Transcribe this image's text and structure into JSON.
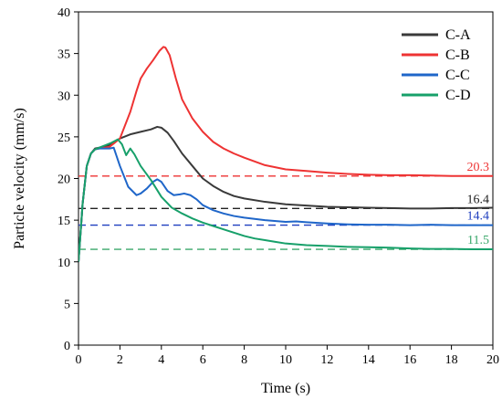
{
  "chart_data": {
    "type": "line",
    "xlabel": "Time (s)",
    "ylabel": "Particle velocity (mm/s)",
    "xlim": [
      0,
      20
    ],
    "ylim": [
      0,
      40
    ],
    "xticks": [
      0,
      2,
      4,
      6,
      8,
      10,
      12,
      14,
      16,
      18,
      20
    ],
    "yticks": [
      0,
      5,
      10,
      15,
      20,
      25,
      30,
      35,
      40
    ],
    "grid": false,
    "legend_position": "top-right",
    "series": [
      {
        "name": "C-A",
        "color": "#3a3a3a",
        "x": [
          0,
          0.2,
          0.4,
          0.6,
          0.8,
          1.0,
          1.5,
          2.0,
          2.5,
          3.0,
          3.5,
          3.8,
          4.0,
          4.3,
          4.6,
          5.0,
          5.5,
          6.0,
          6.5,
          7.0,
          7.5,
          8.0,
          9.0,
          10.0,
          11.0,
          12.0,
          13.0,
          14.0,
          15.0,
          16.0,
          17.0,
          18.0,
          19.0,
          20.0
        ],
        "y": [
          10.0,
          17.0,
          21.5,
          23.0,
          23.6,
          23.7,
          24.0,
          24.8,
          25.3,
          25.6,
          25.9,
          26.2,
          26.1,
          25.5,
          24.5,
          23.0,
          21.5,
          20.0,
          19.1,
          18.4,
          17.9,
          17.6,
          17.2,
          16.9,
          16.75,
          16.6,
          16.55,
          16.5,
          16.45,
          16.4,
          16.4,
          16.45,
          16.45,
          16.5
        ]
      },
      {
        "name": "C-B",
        "color": "#ee3333",
        "x": [
          0,
          0.2,
          0.4,
          0.6,
          0.8,
          1.0,
          1.5,
          2.0,
          2.5,
          2.8,
          3.0,
          3.3,
          3.6,
          3.9,
          4.1,
          4.2,
          4.4,
          4.7,
          5.0,
          5.5,
          6.0,
          6.5,
          7.0,
          7.5,
          8.0,
          9.0,
          10.0,
          11.0,
          12.0,
          13.0,
          14.0,
          15.0,
          16.0,
          17.0,
          18.0,
          19.0,
          20.0
        ],
        "y": [
          10.0,
          17.0,
          21.5,
          23.0,
          23.5,
          23.6,
          23.8,
          24.8,
          28.0,
          30.5,
          32.0,
          33.2,
          34.2,
          35.3,
          35.8,
          35.7,
          34.8,
          32.0,
          29.5,
          27.2,
          25.6,
          24.4,
          23.6,
          23.0,
          22.5,
          21.6,
          21.1,
          20.9,
          20.7,
          20.55,
          20.45,
          20.4,
          20.4,
          20.35,
          20.3,
          20.3,
          20.3
        ]
      },
      {
        "name": "C-C",
        "color": "#1f66c9",
        "x": [
          0,
          0.2,
          0.4,
          0.6,
          0.8,
          1.0,
          1.5,
          1.7,
          2.0,
          2.4,
          2.8,
          3.0,
          3.3,
          3.6,
          3.8,
          4.0,
          4.3,
          4.6,
          4.9,
          5.1,
          5.4,
          5.7,
          6.0,
          6.5,
          7.0,
          7.5,
          8.0,
          9.0,
          10.0,
          10.5,
          11.0,
          12.0,
          13.0,
          14.0,
          15.0,
          16.0,
          17.0,
          18.0,
          19.0,
          20.0
        ],
        "y": [
          10.0,
          17.0,
          21.5,
          23.0,
          23.5,
          23.6,
          23.6,
          23.7,
          21.5,
          19.0,
          18.0,
          18.2,
          18.8,
          19.6,
          19.9,
          19.6,
          18.5,
          18.0,
          18.1,
          18.2,
          18.0,
          17.5,
          16.8,
          16.2,
          15.8,
          15.5,
          15.3,
          15.0,
          14.8,
          14.85,
          14.75,
          14.6,
          14.5,
          14.45,
          14.45,
          14.4,
          14.45,
          14.4,
          14.4,
          14.4
        ]
      },
      {
        "name": "C-D",
        "color": "#17a06a",
        "x": [
          0,
          0.2,
          0.4,
          0.6,
          0.8,
          1.0,
          1.3,
          1.6,
          1.9,
          2.1,
          2.3,
          2.5,
          2.7,
          3.0,
          3.5,
          4.0,
          4.5,
          5.0,
          5.5,
          6.0,
          6.5,
          7.0,
          7.5,
          8.0,
          8.5,
          9.0,
          9.5,
          10.0,
          11.0,
          12.0,
          13.0,
          14.0,
          15.0,
          16.0,
          17.0,
          18.0,
          19.0,
          20.0
        ],
        "y": [
          10.0,
          17.0,
          21.5,
          23.0,
          23.5,
          23.7,
          24.0,
          24.3,
          24.7,
          24.1,
          22.8,
          23.6,
          22.9,
          21.5,
          19.8,
          17.8,
          16.5,
          15.8,
          15.2,
          14.7,
          14.3,
          13.9,
          13.5,
          13.1,
          12.8,
          12.6,
          12.4,
          12.2,
          12.0,
          11.9,
          11.8,
          11.75,
          11.7,
          11.6,
          11.55,
          11.55,
          11.5,
          11.5
        ]
      }
    ],
    "reference_lines": [
      {
        "value": 20.3,
        "label": "20.3",
        "color": "#ee3333"
      },
      {
        "value": 16.4,
        "label": "16.4",
        "color": "#222222"
      },
      {
        "value": 14.4,
        "label": "14.4",
        "color": "#1f3fbf"
      },
      {
        "value": 11.5,
        "label": "11.5",
        "color": "#3aa86b"
      }
    ]
  }
}
